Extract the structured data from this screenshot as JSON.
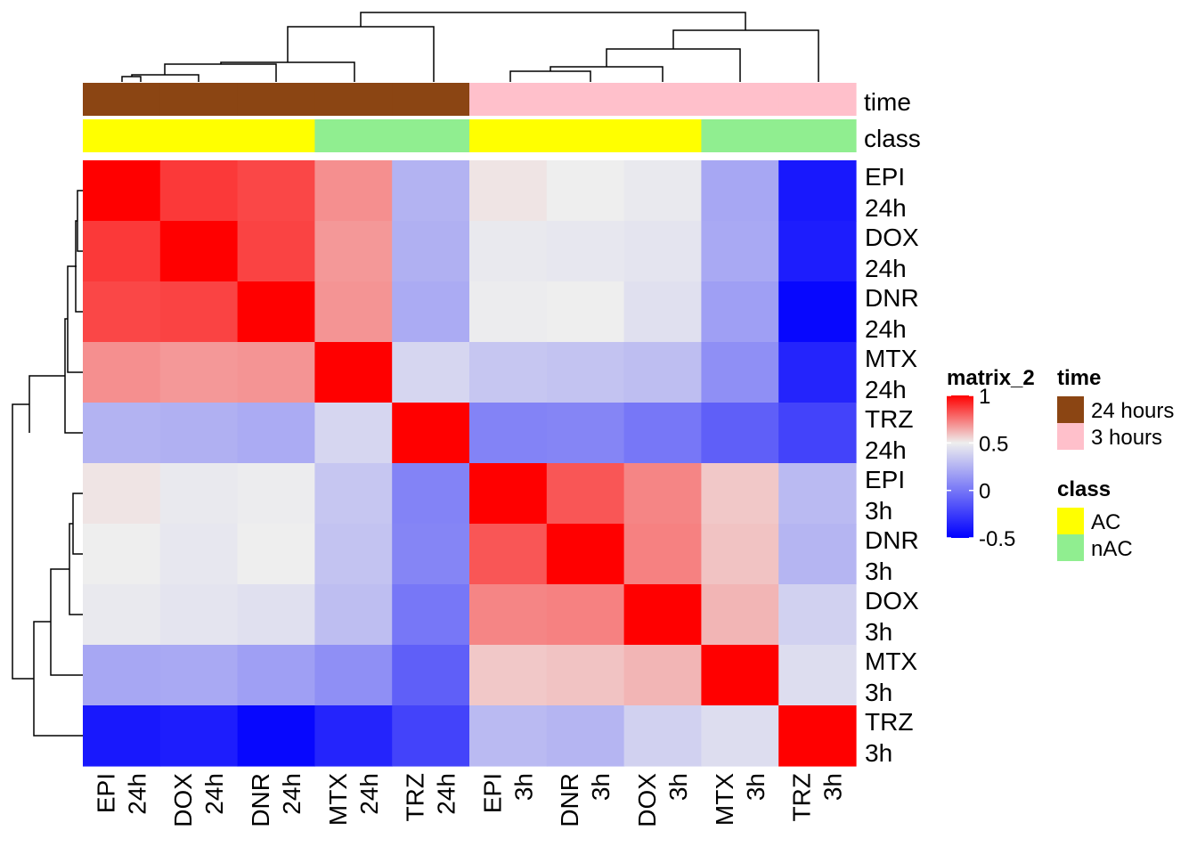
{
  "chart_data": {
    "type": "heatmap",
    "labels": [
      [
        "EPI",
        "24h"
      ],
      [
        "DOX",
        "24h"
      ],
      [
        "DNR",
        "24h"
      ],
      [
        "MTX",
        "24h"
      ],
      [
        "TRZ",
        "24h"
      ],
      [
        "EPI",
        "3h"
      ],
      [
        "DNR",
        "3h"
      ],
      [
        "DOX",
        "3h"
      ],
      [
        "MTX",
        "3h"
      ],
      [
        "TRZ",
        "3h"
      ]
    ],
    "matrix": [
      [
        1.0,
        0.88,
        0.85,
        0.7,
        0.25,
        0.52,
        0.5,
        0.48,
        0.2,
        -0.4
      ],
      [
        0.88,
        1.0,
        0.86,
        0.68,
        0.24,
        0.48,
        0.47,
        0.46,
        0.21,
        -0.38
      ],
      [
        0.85,
        0.86,
        1.0,
        0.69,
        0.22,
        0.49,
        0.5,
        0.44,
        0.17,
        -0.47
      ],
      [
        0.7,
        0.68,
        0.69,
        1.0,
        0.4,
        0.33,
        0.32,
        0.3,
        0.1,
        -0.35
      ],
      [
        0.25,
        0.24,
        0.22,
        0.4,
        1.0,
        0.05,
        0.06,
        0.0,
        -0.1,
        -0.22
      ],
      [
        0.52,
        0.48,
        0.49,
        0.33,
        0.05,
        1.0,
        0.82,
        0.72,
        0.58,
        0.28
      ],
      [
        0.5,
        0.47,
        0.5,
        0.32,
        0.06,
        0.82,
        1.0,
        0.73,
        0.59,
        0.26
      ],
      [
        0.48,
        0.46,
        0.44,
        0.3,
        0.0,
        0.72,
        0.73,
        1.0,
        0.62,
        0.38
      ],
      [
        0.2,
        0.21,
        0.17,
        0.1,
        -0.1,
        0.58,
        0.59,
        0.62,
        1.0,
        0.43
      ],
      [
        -0.4,
        -0.38,
        -0.47,
        -0.35,
        -0.22,
        0.28,
        0.26,
        0.38,
        0.43,
        1.0
      ]
    ],
    "time": [
      "24 hours",
      "24 hours",
      "24 hours",
      "24 hours",
      "24 hours",
      "3 hours",
      "3 hours",
      "3 hours",
      "3 hours",
      "3 hours"
    ],
    "class": [
      "AC",
      "AC",
      "AC",
      "nAC",
      "nAC",
      "AC",
      "AC",
      "AC",
      "nAC",
      "nAC"
    ],
    "annotation_labels": {
      "time": "time",
      "class": "class"
    },
    "color_scale": {
      "title": "matrix_2",
      "min": -0.5,
      "mid": 0.5,
      "max": 1,
      "ticks": [
        "1",
        "0.5",
        "0",
        "-0.5"
      ],
      "tick_values": [
        1,
        0.5,
        0,
        -0.5
      ],
      "colors": {
        "low": "#0000FF",
        "mid": "#EEEEEE",
        "high": "#FF0000"
      }
    },
    "legends": {
      "time": {
        "title": "time",
        "items": [
          {
            "label": "24 hours",
            "color": "#8B4513"
          },
          {
            "label": "3 hours",
            "color": "#FFC0CB"
          }
        ]
      },
      "class": {
        "title": "class",
        "items": [
          {
            "label": "AC",
            "color": "#FFFF00"
          },
          {
            "label": "nAC",
            "color": "#90EE90"
          }
        ]
      }
    },
    "dendrogram": "hierarchical clustering on rows and columns"
  }
}
